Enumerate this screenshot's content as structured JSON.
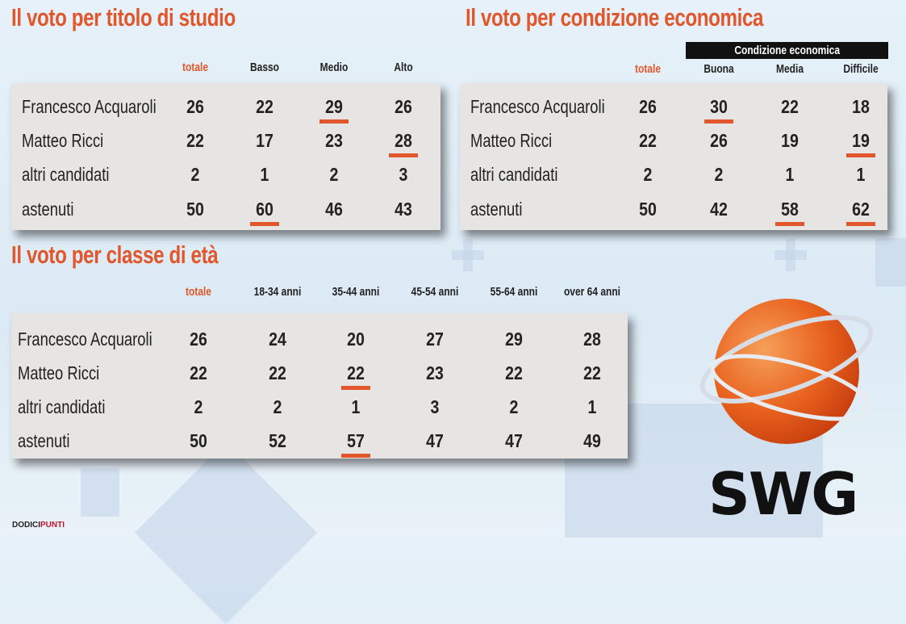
{
  "colors": {
    "accent": "#e2562b",
    "box": "#e6e5e3"
  },
  "chart_data": [
    {
      "type": "table",
      "title": "Il voto per titolo di studio",
      "columns": [
        "totale",
        "Basso",
        "Medio",
        "Alto"
      ],
      "rows": [
        {
          "label": "Francesco Acquaroli",
          "values": [
            "26",
            "22",
            "29",
            "26"
          ],
          "highlight": [
            2
          ]
        },
        {
          "label": "Matteo Ricci",
          "values": [
            "22",
            "17",
            "23",
            "28"
          ],
          "highlight": [
            3
          ]
        },
        {
          "label": "altri candidati",
          "values": [
            "2",
            "1",
            "2",
            "3"
          ],
          "highlight": []
        },
        {
          "label": "astenuti",
          "values": [
            "50",
            "60",
            "46",
            "43"
          ],
          "highlight": [
            1
          ]
        }
      ]
    },
    {
      "type": "table",
      "title": "Il voto per condizione economica",
      "group_header": "Condizione economica",
      "columns": [
        "totale",
        "Buona",
        "Media",
        "Difficile"
      ],
      "rows": [
        {
          "label": "Francesco Acquaroli",
          "values": [
            "26",
            "30",
            "22",
            "18"
          ],
          "highlight": [
            1
          ]
        },
        {
          "label": "Matteo Ricci",
          "values": [
            "22",
            "26",
            "19",
            "19"
          ],
          "highlight": [
            3
          ]
        },
        {
          "label": "altri candidati",
          "values": [
            "2",
            "2",
            "1",
            "1"
          ],
          "highlight": []
        },
        {
          "label": "astenuti",
          "values": [
            "50",
            "42",
            "58",
            "62"
          ],
          "highlight": [
            2,
            3
          ]
        }
      ]
    },
    {
      "type": "table",
      "title": "Il voto per classe di età",
      "columns": [
        "totale",
        "18-34 anni",
        "35-44 anni",
        "45-54 anni",
        "55-64 anni",
        "over 64 anni"
      ],
      "rows": [
        {
          "label": "Francesco Acquaroli",
          "values": [
            "26",
            "24",
            "20",
            "27",
            "29",
            "28"
          ],
          "highlight": []
        },
        {
          "label": "Matteo Ricci",
          "values": [
            "22",
            "22",
            "22",
            "23",
            "22",
            "22"
          ],
          "highlight": [
            2
          ]
        },
        {
          "label": "altri candidati",
          "values": [
            "2",
            "2",
            "1",
            "3",
            "2",
            "1"
          ],
          "highlight": []
        },
        {
          "label": "astenuti",
          "values": [
            "50",
            "52",
            "57",
            "47",
            "47",
            "49"
          ],
          "highlight": [
            2
          ]
        }
      ]
    }
  ],
  "logo": {
    "text": "SWG"
  },
  "footer": {
    "brand_a": "DODICI",
    "brand_b": "PUNTI"
  }
}
